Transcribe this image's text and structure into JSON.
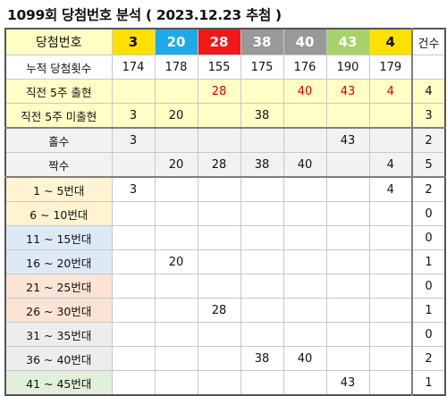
{
  "title": "1099회 당첨번호 분석 ( 2023.12.23 추첨 )",
  "header": {
    "label": "당첨번호",
    "count_label": "건수",
    "balls": [
      {
        "num": "3",
        "bg": "#ffe000",
        "color": "#111111"
      },
      {
        "num": "20",
        "bg": "#1ea9e8",
        "color": "#ffffff"
      },
      {
        "num": "28",
        "bg": "#f01818",
        "color": "#ffffff"
      },
      {
        "num": "38",
        "bg": "#999999",
        "color": "#ffffff"
      },
      {
        "num": "40",
        "bg": "#999999",
        "color": "#ffffff"
      },
      {
        "num": "43",
        "bg": "#a6d26a",
        "color": "#ffffff"
      },
      {
        "num": "4",
        "bg": "#ffe000",
        "color": "#111111"
      }
    ]
  },
  "rows": [
    {
      "label": "누적 당첨횟수",
      "cls": "",
      "cells": [
        "174",
        "178",
        "155",
        "175",
        "176",
        "190",
        "179"
      ],
      "red": [],
      "count": "",
      "group": "stats"
    },
    {
      "label": "직전 5주 출현",
      "cls": "c-main",
      "cells": [
        "",
        "",
        "28",
        "",
        "40",
        "43",
        "4"
      ],
      "red": [
        2,
        4,
        5,
        6
      ],
      "count": "4",
      "group": "stats"
    },
    {
      "label": "직전 5주 미출현",
      "cls": "c-main",
      "cells": [
        "3",
        "20",
        "",
        "38",
        "",
        "",
        ""
      ],
      "red": [],
      "count": "3",
      "group": "stats"
    },
    {
      "label": "홀수",
      "cls": "c-gray",
      "cells": [
        "3",
        "",
        "",
        "",
        "",
        "43",
        ""
      ],
      "red": [],
      "count": "2",
      "group": "odd"
    },
    {
      "label": "짝수",
      "cls": "c-gray",
      "cells": [
        "",
        "20",
        "28",
        "38",
        "40",
        "",
        "4"
      ],
      "red": [],
      "count": "5",
      "group": "odd"
    },
    {
      "label": "1 ~ 5번대",
      "cls": "c-5",
      "cells": [
        "3",
        "",
        "",
        "",
        "",
        "",
        "4"
      ],
      "red": [],
      "count": "2",
      "group": "range"
    },
    {
      "label": "6 ~ 10번대",
      "cls": "c-10",
      "cells": [
        "",
        "",
        "",
        "",
        "",
        "",
        ""
      ],
      "red": [],
      "count": "0",
      "group": "range"
    },
    {
      "label": "11 ~ 15번대",
      "cls": "c-15",
      "cells": [
        "",
        "",
        "",
        "",
        "",
        "",
        ""
      ],
      "red": [],
      "count": "0",
      "group": "range"
    },
    {
      "label": "16 ~ 20번대",
      "cls": "c-20",
      "cells": [
        "",
        "20",
        "",
        "",
        "",
        "",
        ""
      ],
      "red": [],
      "count": "1",
      "group": "range"
    },
    {
      "label": "21 ~ 25번대",
      "cls": "c-25",
      "cells": [
        "",
        "",
        "",
        "",
        "",
        "",
        ""
      ],
      "red": [],
      "count": "0",
      "group": "range"
    },
    {
      "label": "26 ~ 30번대",
      "cls": "c-30",
      "cells": [
        "",
        "",
        "28",
        "",
        "",
        "",
        ""
      ],
      "red": [],
      "count": "1",
      "group": "range"
    },
    {
      "label": "31 ~ 35번대",
      "cls": "c-35",
      "cells": [
        "",
        "",
        "",
        "",
        "",
        "",
        ""
      ],
      "red": [],
      "count": "0",
      "group": "range"
    },
    {
      "label": "36 ~ 40번대",
      "cls": "c-40",
      "cells": [
        "",
        "",
        "",
        "38",
        "40",
        "",
        ""
      ],
      "red": [],
      "count": "2",
      "group": "range"
    },
    {
      "label": "41 ~ 45번대",
      "cls": "c-45",
      "cells": [
        "",
        "",
        "",
        "",
        "",
        "43",
        ""
      ],
      "red": [],
      "count": "1",
      "group": "range"
    }
  ]
}
